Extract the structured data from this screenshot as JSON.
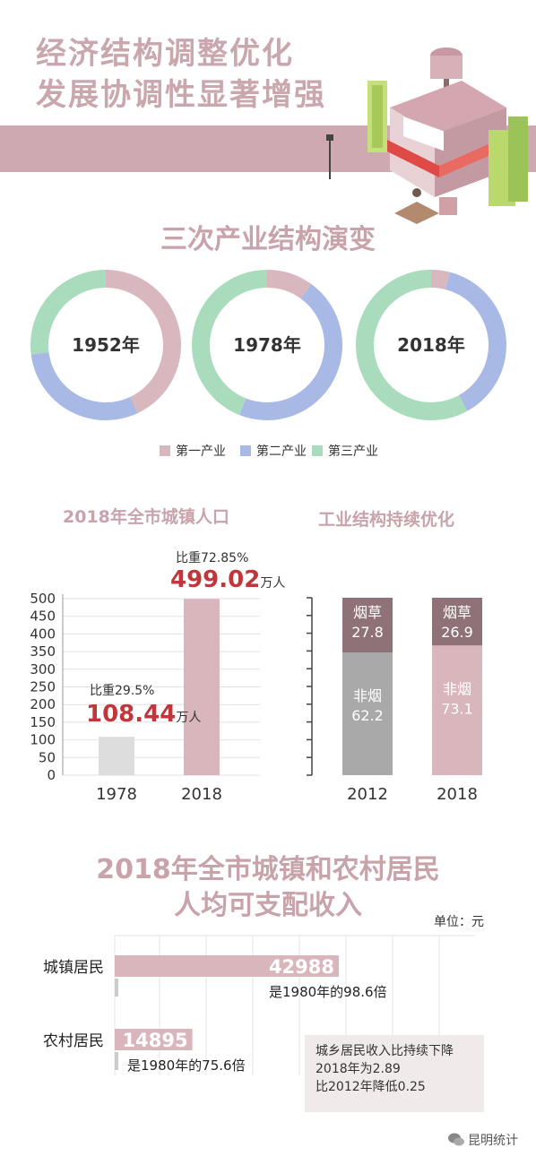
{
  "header": {
    "title_line1": "经济结构调整优化",
    "title_line2": "发展协调性显著增强"
  },
  "colors": {
    "primary": "#d9b7bf",
    "secondary": "#a9b9e6",
    "tertiary": "#a8dcbc",
    "bar_gray": "#dddddd",
    "bar_pink": "#d9b6bc",
    "accent_red": "#c0363b",
    "tobacco_dark": "#8f7277",
    "nontobacco_gray": "#a9a9a9"
  },
  "chart_data": [
    {
      "type": "pie",
      "title": "三次产业结构演变",
      "legend": [
        "第一产业",
        "第二产业",
        "第三产业"
      ],
      "legend_position": "bottom",
      "charts": [
        {
          "label": "1952年",
          "values": [
            43,
            30,
            27
          ]
        },
        {
          "label": "1978年",
          "values": [
            10,
            46,
            44
          ]
        },
        {
          "label": "2018年",
          "values": [
            4,
            38,
            58
          ]
        }
      ]
    },
    {
      "type": "bar",
      "title": "2018年全市城镇人口",
      "categories": [
        "1978",
        "2018"
      ],
      "values": [
        108.44,
        499.02
      ],
      "value_labels": [
        "108.44",
        "499.02"
      ],
      "unit": "万人",
      "share_labels": [
        "比重29.5%",
        "比重72.85%"
      ],
      "ylim": [
        0,
        500
      ],
      "yticks": [
        "0",
        "50",
        "100",
        "150",
        "200",
        "250",
        "300",
        "350",
        "400",
        "450",
        "500"
      ],
      "grid": true
    },
    {
      "type": "bar",
      "title": "工业结构持续优化",
      "categories": [
        "2012",
        "2018"
      ],
      "series": [
        {
          "name": "非烟",
          "values": [
            62.2,
            73.1
          ],
          "value_labels": [
            "62.2",
            "73.1"
          ]
        },
        {
          "name": "烟草",
          "values": [
            27.8,
            26.9
          ],
          "value_labels": [
            "27.8",
            "26.9"
          ]
        }
      ],
      "stacked": true
    },
    {
      "type": "bar",
      "orientation": "horizontal",
      "title": "2018年全市城镇和农村居民人均可支配收入",
      "unit_label": "单位：元",
      "categories": [
        "城镇居民",
        "农村居民"
      ],
      "values": [
        42988,
        14895
      ],
      "value_labels": [
        "42988",
        "14895"
      ],
      "notes": [
        "是1980年的98.6倍",
        "是1980年的75.6倍"
      ]
    }
  ],
  "income_box": {
    "line1": "城乡居民收入比持续下降",
    "line2": "2018年为2.89",
    "line3": "比2012年降低0.25"
  },
  "watermark": {
    "text": "昆明统计",
    "icon": "wechat-icon"
  }
}
